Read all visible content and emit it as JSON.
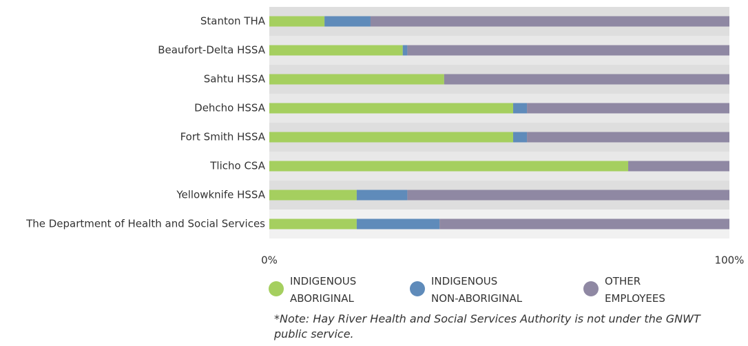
{
  "chart_data": {
    "type": "stacked-barh",
    "categories": [
      "Stanton THA",
      "Beaufort-Delta HSSA",
      "Sahtu HSSA",
      "Dehcho HSSA",
      "Fort Smith HSSA",
      "Tlicho CSA",
      "Yellowknife HSSA",
      "The Department of Health and Social Services"
    ],
    "series": [
      {
        "name": "INDIGENOUS ABORIGINAL",
        "color": "#a5cf5f",
        "values": [
          12,
          29,
          38,
          53,
          53,
          78,
          19,
          19
        ]
      },
      {
        "name": "INDIGENOUS NON-ABORIGINAL",
        "color": "#5f8bba",
        "values": [
          10,
          1,
          0,
          3,
          3,
          0,
          11,
          18
        ]
      },
      {
        "name": "OTHER EMPLOYEES",
        "color": "#8f88a3",
        "values": [
          78,
          70,
          62,
          44,
          44,
          22,
          70,
          63
        ]
      }
    ],
    "xlim": [
      0,
      100
    ],
    "xticks": [
      {
        "value": 0,
        "label": "0%"
      },
      {
        "value": 100,
        "label": "100%"
      }
    ],
    "note": "*Note: Hay River Health and Social Services Authority is not under the GNWT public service."
  }
}
